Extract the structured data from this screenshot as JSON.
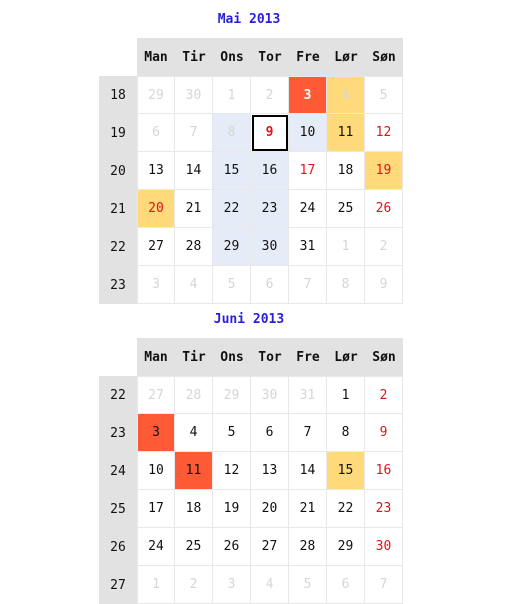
{
  "weekdays": [
    "Man",
    "Tir",
    "Ons",
    "Tor",
    "Fre",
    "Lør",
    "Søn"
  ],
  "months": [
    {
      "title": "Mai 2013",
      "weeks": [
        "18",
        "19",
        "20",
        "21",
        "22",
        "23"
      ],
      "days": [
        [
          "29",
          "30",
          "1",
          "2",
          "3",
          "4",
          "5"
        ],
        [
          "6",
          "7",
          "8",
          "9",
          "10",
          "11",
          "12"
        ],
        [
          "13",
          "14",
          "15",
          "16",
          "17",
          "18",
          "19"
        ],
        [
          "20",
          "21",
          "22",
          "23",
          "24",
          "25",
          "26"
        ],
        [
          "27",
          "28",
          "29",
          "30",
          "31",
          "1",
          "2"
        ],
        [
          "3",
          "4",
          "5",
          "6",
          "7",
          "8",
          "9"
        ]
      ],
      "styles": [
        [
          "other",
          "other",
          "other",
          "other",
          "red-bg white-txt",
          "yellow-bg other",
          "other"
        ],
        [
          "other",
          "other",
          "blue-bg other",
          "today",
          "blue-bg",
          "yellow-bg",
          "sun"
        ],
        [
          "",
          "",
          "blue-bg",
          "blue-bg",
          "bold-red",
          "",
          "yellow-bg sun"
        ],
        [
          "yellow-bg sun",
          "",
          "blue-bg",
          "blue-bg",
          "",
          "",
          "sun"
        ],
        [
          "",
          "",
          "blue-bg",
          "blue-bg",
          "",
          "other",
          "other"
        ],
        [
          "other",
          "other",
          "other",
          "other",
          "other",
          "other",
          "other"
        ]
      ]
    },
    {
      "title": "Juni 2013",
      "weeks": [
        "22",
        "23",
        "24",
        "25",
        "26",
        "27"
      ],
      "days": [
        [
          "27",
          "28",
          "29",
          "30",
          "31",
          "1",
          "2"
        ],
        [
          "3",
          "4",
          "5",
          "6",
          "7",
          "8",
          "9"
        ],
        [
          "10",
          "11",
          "12",
          "13",
          "14",
          "15",
          "16"
        ],
        [
          "17",
          "18",
          "19",
          "20",
          "21",
          "22",
          "23"
        ],
        [
          "24",
          "25",
          "26",
          "27",
          "28",
          "29",
          "30"
        ],
        [
          "1",
          "2",
          "3",
          "4",
          "5",
          "6",
          "7"
        ]
      ],
      "styles": [
        [
          "other",
          "other",
          "other",
          "other",
          "other",
          "",
          "sun"
        ],
        [
          "red-bg",
          "",
          "",
          "",
          "",
          "",
          "sun"
        ],
        [
          "",
          "red-bg",
          "",
          "",
          "",
          "yellow-bg",
          "sun"
        ],
        [
          "",
          "",
          "",
          "",
          "",
          "",
          "sun"
        ],
        [
          "",
          "",
          "",
          "",
          "",
          "",
          "sun"
        ],
        [
          "other",
          "other",
          "other",
          "other",
          "other",
          "other",
          "other"
        ]
      ]
    }
  ]
}
